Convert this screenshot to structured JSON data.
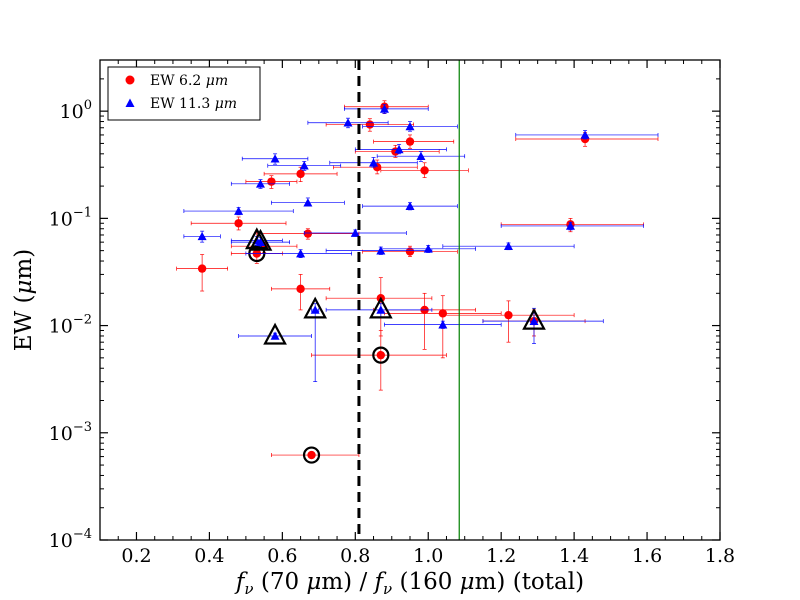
{
  "chart_data": {
    "type": "scatter",
    "x_scale": "linear",
    "y_scale": "log",
    "xlim": [
      0.1,
      1.8
    ],
    "ylim": [
      0.0001,
      3
    ],
    "xlabel": "f_ν (70 μm) / f_ν (160 μm) (total)",
    "xlabel_parts": [
      "f",
      "ν",
      " (70 ",
      "μ",
      "m) / ",
      "f",
      "ν",
      " (160 ",
      "μ",
      "m) (total)"
    ],
    "ylabel": "EW (μm)",
    "ylabel_parts": [
      "EW (",
      "μ",
      "m)"
    ],
    "x_ticks": [
      0.2,
      0.4,
      0.6,
      0.8,
      1.0,
      1.2,
      1.4,
      1.6,
      1.8
    ],
    "x_tick_labels": [
      "0.2",
      "0.4",
      "0.6",
      "0.8",
      "1.0",
      "1.2",
      "1.4",
      "1.6",
      "1.8"
    ],
    "y_ticks": [
      0.0001,
      0.001,
      0.01,
      0.1,
      1
    ],
    "y_tick_labels": [
      {
        "base": "10",
        "exp": "−4"
      },
      {
        "base": "10",
        "exp": "−3"
      },
      {
        "base": "10",
        "exp": "−2"
      },
      {
        "base": "10",
        "exp": "−1"
      },
      {
        "base": "10",
        "exp": "0"
      }
    ],
    "legend": {
      "position": "top-left",
      "entries": [
        {
          "label": "EW 6.2 μm",
          "text": "EW 6.2 ",
          "mu": "μ",
          "unit": "m",
          "marker": "circle",
          "color": "#ff0000"
        },
        {
          "label": "EW 11.3 μm",
          "text": "EW 11.3 ",
          "mu": "μ",
          "unit": "m",
          "marker": "triangle",
          "color": "#0000ff"
        }
      ]
    },
    "vlines": [
      {
        "x": 0.81,
        "style": "dashed",
        "color": "#000000"
      },
      {
        "x": 1.085,
        "style": "solid",
        "color": "#008000"
      }
    ],
    "series": [
      {
        "name": "EW 6.2 μm",
        "marker": "circle",
        "color": "#ff0000",
        "points": [
          {
            "x": 0.88,
            "y": 1.1,
            "xmin": 0.77,
            "xmax": 1.0,
            "ylo": 0.95,
            "yhi": 1.25
          },
          {
            "x": 0.95,
            "y": 0.52,
            "xmin": 0.85,
            "xmax": 1.07,
            "ylo": 0.45,
            "yhi": 0.6
          },
          {
            "x": 1.43,
            "y": 0.55,
            "xmin": 1.24,
            "xmax": 1.63,
            "ylo": 0.47,
            "yhi": 0.63
          },
          {
            "x": 0.91,
            "y": 0.42,
            "xmin": 0.8,
            "xmax": 1.03,
            "ylo": 0.37,
            "yhi": 0.48
          },
          {
            "x": 0.86,
            "y": 0.3,
            "xmin": 0.74,
            "xmax": 0.97,
            "ylo": 0.26,
            "yhi": 0.35
          },
          {
            "x": 0.99,
            "y": 0.28,
            "xmin": 0.87,
            "xmax": 1.11,
            "ylo": 0.24,
            "yhi": 0.33
          },
          {
            "x": 0.65,
            "y": 0.26,
            "xmin": 0.55,
            "xmax": 0.75,
            "ylo": 0.22,
            "yhi": 0.3
          },
          {
            "x": 0.57,
            "y": 0.22,
            "xmin": 0.5,
            "xmax": 0.64,
            "ylo": 0.19,
            "yhi": 0.25
          },
          {
            "x": 0.84,
            "y": 0.75,
            "xmin": 0.72,
            "xmax": 0.96,
            "ylo": 0.65,
            "yhi": 0.85
          },
          {
            "x": 1.39,
            "y": 0.088,
            "xmin": 1.2,
            "xmax": 1.59,
            "ylo": 0.075,
            "yhi": 0.1
          },
          {
            "x": 0.48,
            "y": 0.09,
            "xmin": 0.35,
            "xmax": 0.61,
            "ylo": 0.078,
            "yhi": 0.103
          },
          {
            "x": 0.67,
            "y": 0.072,
            "xmin": 0.53,
            "xmax": 0.81,
            "ylo": 0.064,
            "yhi": 0.08
          },
          {
            "x": 0.55,
            "y": 0.055,
            "xmin": 0.46,
            "xmax": 0.64,
            "ylo": 0.048,
            "yhi": 0.062
          },
          {
            "x": 0.95,
            "y": 0.049,
            "xmin": 0.82,
            "xmax": 1.08,
            "ylo": 0.044,
            "yhi": 0.055
          },
          {
            "x": 0.38,
            "y": 0.034,
            "xmin": 0.31,
            "xmax": 0.45,
            "ylo": 0.021,
            "yhi": 0.046
          },
          {
            "x": 0.65,
            "y": 0.022,
            "xmin": 0.57,
            "xmax": 0.73,
            "ylo": 0.014,
            "yhi": 0.03
          },
          {
            "x": 0.87,
            "y": 0.018,
            "xmin": 0.72,
            "xmax": 1.01,
            "ylo": 0.008,
            "yhi": 0.028
          },
          {
            "x": 0.99,
            "y": 0.014,
            "xmin": 0.85,
            "xmax": 1.13,
            "ylo": 0.006,
            "yhi": 0.02
          },
          {
            "x": 1.04,
            "y": 0.013,
            "xmin": 0.88,
            "xmax": 1.2,
            "ylo": 0.005,
            "yhi": 0.019
          },
          {
            "x": 1.22,
            "y": 0.0125,
            "xmin": 1.04,
            "xmax": 1.4,
            "ylo": 0.007,
            "yhi": 0.017
          },
          {
            "x": 0.53,
            "y": 0.047,
            "xmin": 0.46,
            "xmax": 0.6,
            "ylo": 0.038,
            "yhi": 0.056
          },
          {
            "x": 0.87,
            "y": 0.0053,
            "xmin": 0.68,
            "xmax": 1.05,
            "ylo": 0.0025,
            "yhi": 0.009
          },
          {
            "x": 0.68,
            "y": 0.00062,
            "xmin": 0.57,
            "xmax": 0.81,
            "ylo": 0.00058,
            "yhi": 0.00066
          },
          {
            "x": 1.29,
            "y": 0.011,
            "xmin": 1.15,
            "xmax": 1.43,
            "ylo": 0.008,
            "yhi": 0.014
          }
        ],
        "circled": [
          20,
          21,
          22
        ]
      },
      {
        "name": "EW 11.3 μm",
        "marker": "triangle",
        "color": "#0000ff",
        "points": [
          {
            "x": 0.88,
            "y": 1.05,
            "xmin": 0.77,
            "xmax": 1.0,
            "ylo": 0.95,
            "yhi": 1.15
          },
          {
            "x": 0.78,
            "y": 0.78,
            "xmin": 0.67,
            "xmax": 0.89,
            "ylo": 0.7,
            "yhi": 0.86
          },
          {
            "x": 0.95,
            "y": 0.72,
            "xmin": 0.82,
            "xmax": 1.08,
            "ylo": 0.65,
            "yhi": 0.8
          },
          {
            "x": 1.43,
            "y": 0.6,
            "xmin": 1.24,
            "xmax": 1.63,
            "ylo": 0.55,
            "yhi": 0.66
          },
          {
            "x": 0.92,
            "y": 0.44,
            "xmin": 0.8,
            "xmax": 1.05,
            "ylo": 0.4,
            "yhi": 0.49
          },
          {
            "x": 0.98,
            "y": 0.38,
            "xmin": 0.86,
            "xmax": 1.1,
            "ylo": 0.34,
            "yhi": 0.42
          },
          {
            "x": 0.58,
            "y": 0.36,
            "xmin": 0.49,
            "xmax": 0.67,
            "ylo": 0.32,
            "yhi": 0.4
          },
          {
            "x": 0.85,
            "y": 0.33,
            "xmin": 0.73,
            "xmax": 0.97,
            "ylo": 0.3,
            "yhi": 0.37
          },
          {
            "x": 0.66,
            "y": 0.31,
            "xmin": 0.56,
            "xmax": 0.76,
            "ylo": 0.28,
            "yhi": 0.34
          },
          {
            "x": 0.54,
            "y": 0.21,
            "xmin": 0.46,
            "xmax": 0.62,
            "ylo": 0.19,
            "yhi": 0.23
          },
          {
            "x": 0.67,
            "y": 0.14,
            "xmin": 0.57,
            "xmax": 0.77,
            "ylo": 0.13,
            "yhi": 0.155
          },
          {
            "x": 0.95,
            "y": 0.13,
            "xmin": 0.82,
            "xmax": 1.08,
            "ylo": 0.12,
            "yhi": 0.14
          },
          {
            "x": 0.48,
            "y": 0.117,
            "xmin": 0.33,
            "xmax": 0.63,
            "ylo": 0.108,
            "yhi": 0.126
          },
          {
            "x": 1.39,
            "y": 0.085,
            "xmin": 1.2,
            "xmax": 1.59,
            "ylo": 0.078,
            "yhi": 0.092
          },
          {
            "x": 0.8,
            "y": 0.073,
            "xmin": 0.66,
            "xmax": 0.94,
            "ylo": 0.068,
            "yhi": 0.078
          },
          {
            "x": 0.38,
            "y": 0.068,
            "xmin": 0.33,
            "xmax": 0.43,
            "ylo": 0.06,
            "yhi": 0.076
          },
          {
            "x": 1.22,
            "y": 0.055,
            "xmin": 1.04,
            "xmax": 1.4,
            "ylo": 0.051,
            "yhi": 0.059
          },
          {
            "x": 1.0,
            "y": 0.052,
            "xmin": 0.87,
            "xmax": 1.13,
            "ylo": 0.048,
            "yhi": 0.056
          },
          {
            "x": 0.87,
            "y": 0.05,
            "xmin": 0.72,
            "xmax": 1.01,
            "ylo": 0.046,
            "yhi": 0.054
          },
          {
            "x": 0.65,
            "y": 0.047,
            "xmin": 0.5,
            "xmax": 0.79,
            "ylo": 0.043,
            "yhi": 0.051
          },
          {
            "x": 1.04,
            "y": 0.0102,
            "xmin": 0.88,
            "xmax": 1.2,
            "ylo": 0.0094,
            "yhi": 0.011
          },
          {
            "x": 0.53,
            "y": 0.062,
            "xmin": 0.46,
            "xmax": 0.6,
            "ylo": 0.056,
            "yhi": 0.068
          },
          {
            "x": 0.54,
            "y": 0.06,
            "xmin": 0.46,
            "xmax": 0.62,
            "ylo": 0.054,
            "yhi": 0.066
          },
          {
            "x": 0.69,
            "y": 0.014,
            "xmin": 0.68,
            "xmax": 0.7,
            "ylo": 0.003,
            "yhi": 0.016
          },
          {
            "x": 0.87,
            "y": 0.014,
            "xmin": 0.72,
            "xmax": 1.01,
            "ylo": 0.012,
            "yhi": 0.016
          },
          {
            "x": 1.29,
            "y": 0.011,
            "xmin": 1.15,
            "xmax": 1.48,
            "ylo": 0.0068,
            "yhi": 0.0145
          },
          {
            "x": 0.58,
            "y": 0.008,
            "xmin": 0.48,
            "xmax": 0.68,
            "ylo": 0.0075,
            "yhi": 0.0085
          }
        ],
        "outlined": [
          21,
          22,
          23,
          24,
          25,
          26
        ]
      }
    ]
  }
}
